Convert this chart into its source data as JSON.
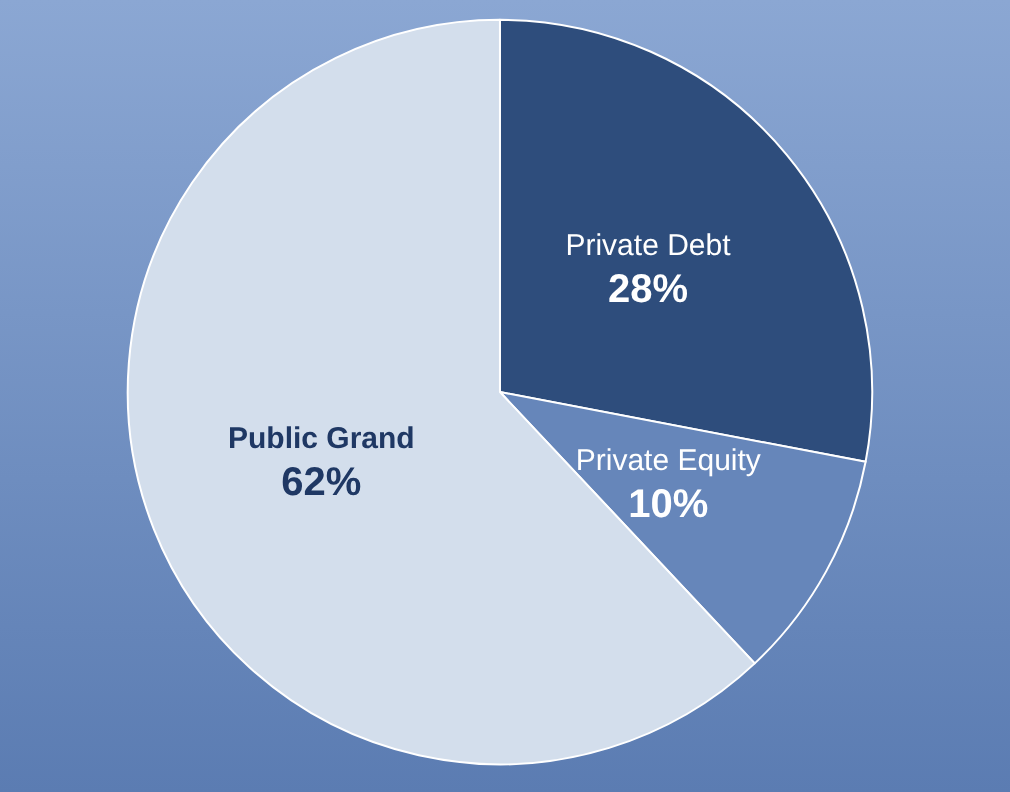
{
  "chart_data": {
    "type": "pie",
    "categories": [
      "Private Debt",
      "Private Equity",
      "Public Grand"
    ],
    "values": [
      28,
      10,
      62
    ],
    "colors": [
      "#2e4d7c",
      "#6686ba",
      "#d3deec"
    ],
    "value_labels": [
      "28%",
      "10%",
      "62%"
    ],
    "legend": false
  }
}
